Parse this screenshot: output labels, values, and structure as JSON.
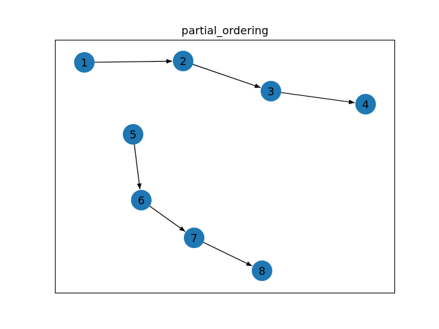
{
  "figure": {
    "title": "partial_ordering",
    "node_color": "#1f77b4",
    "edge_color": "#000000",
    "frame_color": "#000000"
  },
  "graph": {
    "directed": true,
    "nodes": [
      "1",
      "2",
      "3",
      "4",
      "5",
      "6",
      "7",
      "8"
    ],
    "edges": [
      [
        "1",
        "2"
      ],
      [
        "2",
        "3"
      ],
      [
        "3",
        "4"
      ],
      [
        "5",
        "6"
      ],
      [
        "6",
        "7"
      ],
      [
        "7",
        "8"
      ]
    ]
  }
}
